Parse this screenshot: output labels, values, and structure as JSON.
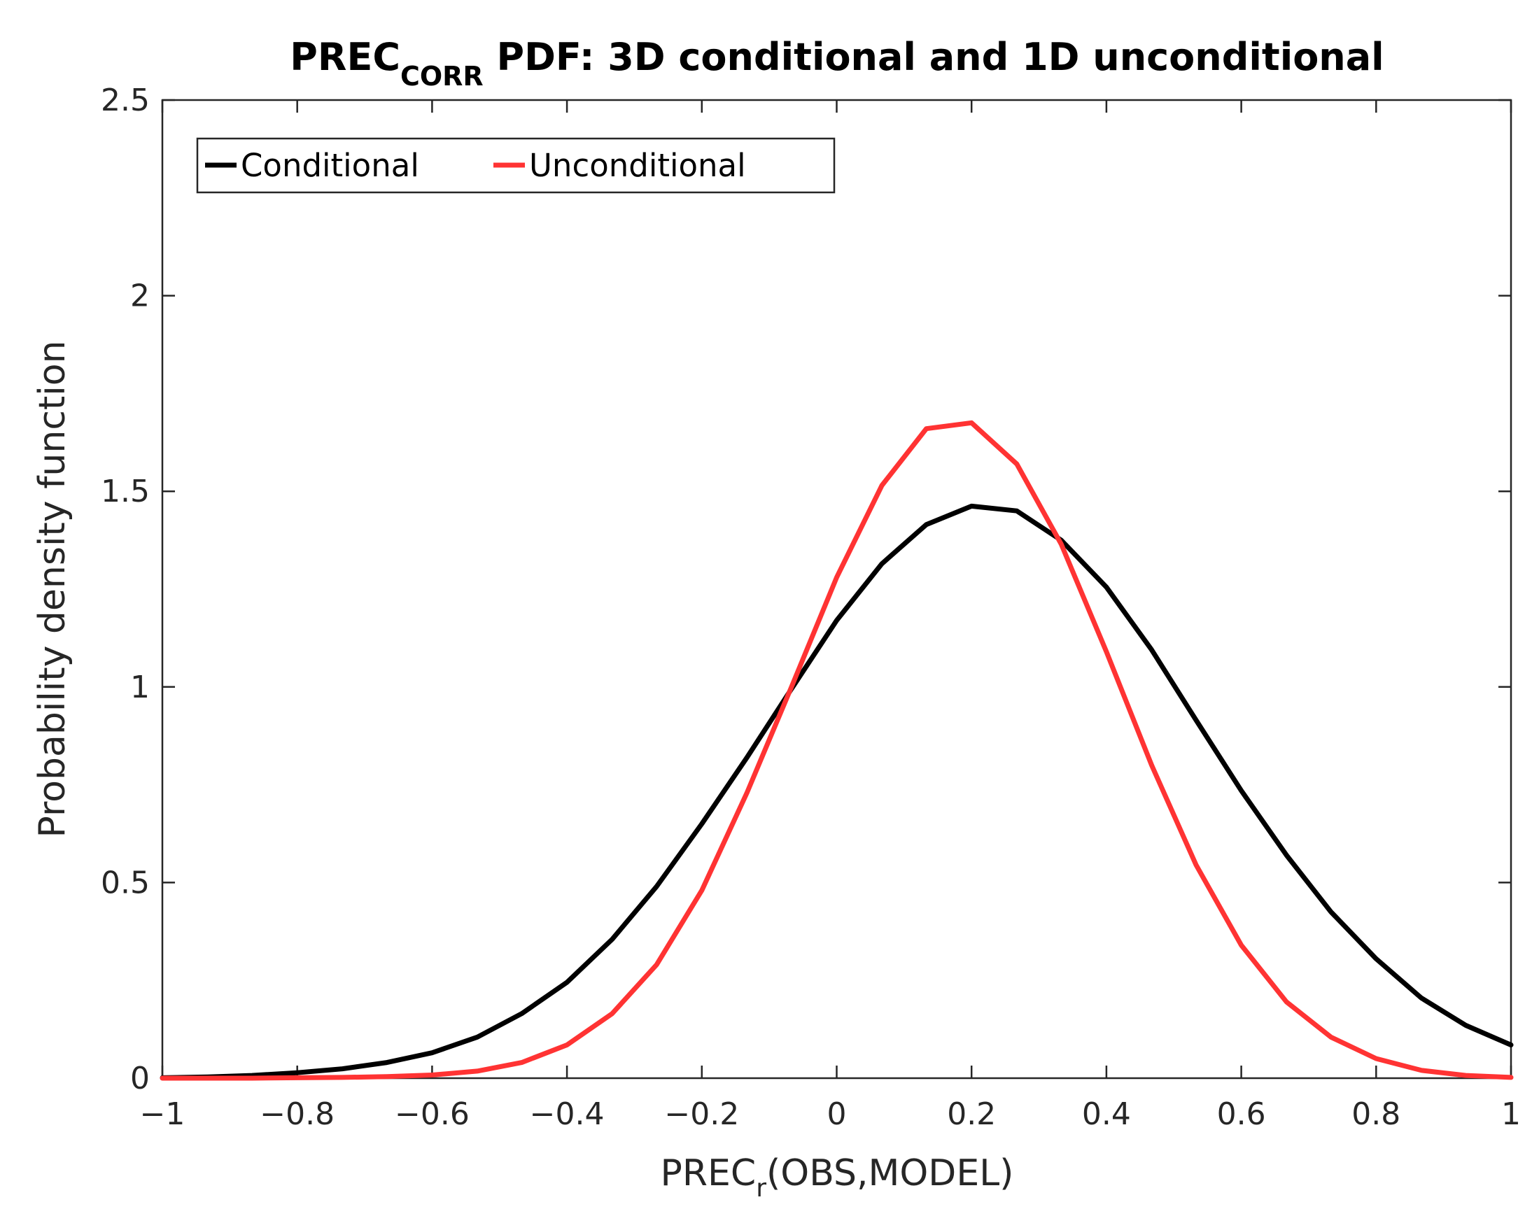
{
  "chart_data": {
    "type": "line",
    "title": {
      "main": "PREC",
      "subscript": "CORR",
      "rest": " PDF: 3D conditional and 1D unconditional"
    },
    "xlabel": {
      "main": "PREC",
      "subscript": "r",
      "rest": "(OBS,MODEL)"
    },
    "ylabel": "Probability density function",
    "xlim": [
      -1,
      1
    ],
    "ylim": [
      0,
      2.5
    ],
    "xticks": [
      -1,
      -0.8,
      -0.6,
      -0.4,
      -0.2,
      0,
      0.2,
      0.4,
      0.6,
      0.8,
      1
    ],
    "xtick_labels": [
      "−1",
      "−0.8",
      "−0.6",
      "−0.4",
      "−0.2",
      "0",
      "0.2",
      "0.4",
      "0.6",
      "0.8",
      "1"
    ],
    "yticks": [
      0,
      0.5,
      1,
      1.5,
      2,
      2.5
    ],
    "ytick_labels": [
      "0",
      "0.5",
      "1",
      "1.5",
      "2",
      "2.5"
    ],
    "grid": false,
    "legend": {
      "position": "top-left",
      "orientation": "horizontal"
    },
    "series": [
      {
        "name": "Conditional",
        "color": "#000000",
        "x": [
          -1,
          -0.933,
          -0.867,
          -0.8,
          -0.733,
          -0.667,
          -0.6,
          -0.533,
          -0.467,
          -0.4,
          -0.333,
          -0.267,
          -0.2,
          -0.133,
          -0.067,
          0,
          0.067,
          0.133,
          0.2,
          0.267,
          0.333,
          0.4,
          0.467,
          0.533,
          0.6,
          0.667,
          0.733,
          0.8,
          0.867,
          0.933,
          1
        ],
        "y": [
          0.001,
          0.003,
          0.007,
          0.014,
          0.024,
          0.04,
          0.065,
          0.105,
          0.165,
          0.245,
          0.355,
          0.49,
          0.65,
          0.82,
          0.995,
          1.17,
          1.315,
          1.415,
          1.462,
          1.45,
          1.375,
          1.255,
          1.095,
          0.915,
          0.735,
          0.57,
          0.425,
          0.305,
          0.205,
          0.135,
          0.085
        ]
      },
      {
        "name": "Unconditional",
        "color": "#ff3333",
        "x": [
          -1,
          -0.933,
          -0.867,
          -0.8,
          -0.733,
          -0.667,
          -0.6,
          -0.533,
          -0.467,
          -0.4,
          -0.333,
          -0.267,
          -0.2,
          -0.133,
          -0.067,
          0,
          0.067,
          0.133,
          0.2,
          0.267,
          0.333,
          0.4,
          0.467,
          0.533,
          0.6,
          0.667,
          0.733,
          0.8,
          0.867,
          0.933,
          1
        ],
        "y": [
          0,
          0,
          0,
          0.001,
          0.002,
          0.004,
          0.008,
          0.018,
          0.04,
          0.085,
          0.165,
          0.29,
          0.48,
          0.73,
          1.0,
          1.28,
          1.515,
          1.66,
          1.675,
          1.57,
          1.365,
          1.09,
          0.8,
          0.545,
          0.34,
          0.195,
          0.105,
          0.05,
          0.02,
          0.007,
          0.002
        ]
      }
    ]
  }
}
